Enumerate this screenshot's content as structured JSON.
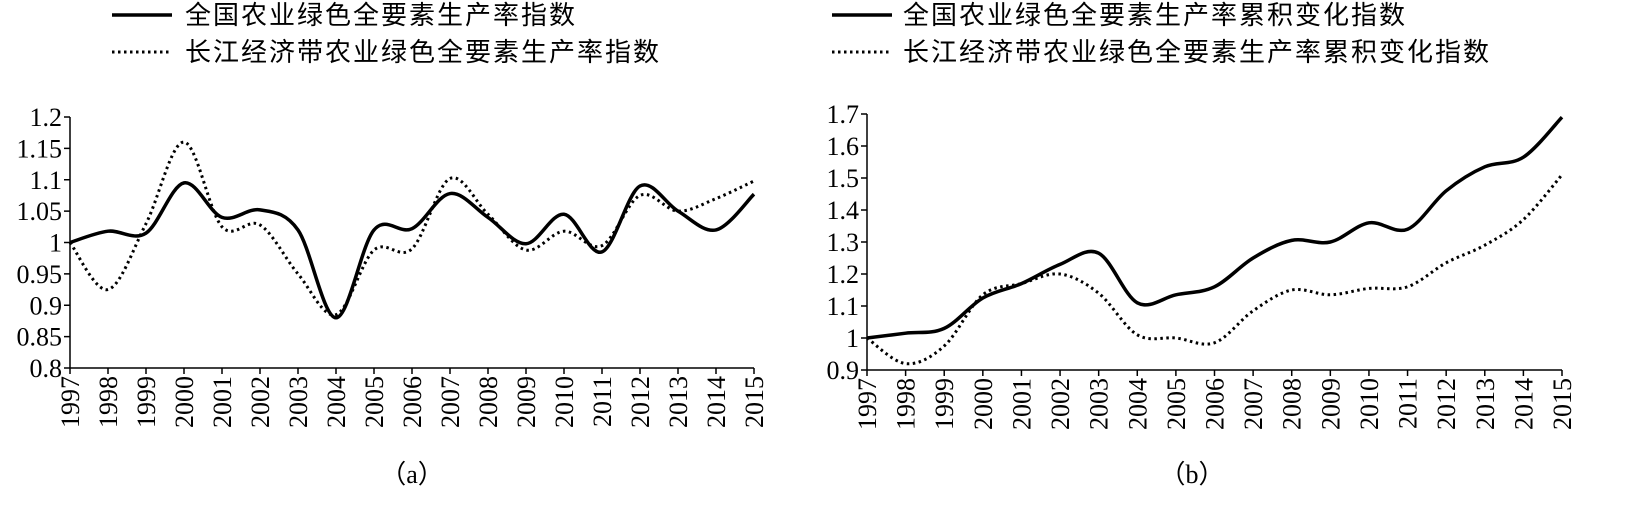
{
  "chart_data": [
    {
      "type": "line",
      "caption": "（a）",
      "x": [
        "1997",
        "1998",
        "1999",
        "2000",
        "2001",
        "2002",
        "2003",
        "2004",
        "2005",
        "2006",
        "2007",
        "2008",
        "2009",
        "2010",
        "2011",
        "2012",
        "2013",
        "2014",
        "2015"
      ],
      "ylim": [
        0.8,
        1.2
      ],
      "yticks": [
        "0.8",
        "0.85",
        "0.9",
        "0.95",
        "1",
        "1.05",
        "1.1",
        "1.15",
        "1.2"
      ],
      "legend_position": "top-left",
      "series": [
        {
          "name": "全国农业绿色全要素生产率指数",
          "style": "solid",
          "values": [
            1.0,
            1.018,
            1.015,
            1.095,
            1.04,
            1.052,
            1.02,
            0.88,
            1.02,
            1.022,
            1.078,
            1.04,
            0.998,
            1.045,
            0.985,
            1.09,
            1.05,
            1.02,
            1.077
          ]
        },
        {
          "name": "长江经济带农业绿色全要素生产率指数",
          "style": "dotted",
          "values": [
            1.0,
            0.925,
            1.03,
            1.16,
            1.025,
            1.028,
            0.95,
            0.885,
            0.988,
            0.99,
            1.102,
            1.045,
            0.988,
            1.018,
            0.995,
            1.075,
            1.05,
            1.07,
            1.098
          ]
        }
      ]
    },
    {
      "type": "line",
      "caption": "（b）",
      "x": [
        "1997",
        "1998",
        "1999",
        "2000",
        "2001",
        "2002",
        "2003",
        "2004",
        "2005",
        "2006",
        "2007",
        "2008",
        "2009",
        "2010",
        "2011",
        "2012",
        "2013",
        "2014",
        "2015"
      ],
      "ylim": [
        0.9,
        1.7
      ],
      "yticks": [
        "0.9",
        "1",
        "1.1",
        "1.2",
        "1.3",
        "1.4",
        "1.5",
        "1.6",
        "1.7"
      ],
      "legend_position": "top-left",
      "series": [
        {
          "name": "全国农业绿色全要素生产率累积变化指数",
          "style": "solid",
          "values": [
            1.0,
            1.015,
            1.03,
            1.125,
            1.17,
            1.23,
            1.265,
            1.11,
            1.135,
            1.16,
            1.25,
            1.305,
            1.3,
            1.36,
            1.34,
            1.46,
            1.535,
            1.565,
            1.69
          ]
        },
        {
          "name": "长江经济带农业绿色全要素生产率累积变化指数",
          "style": "dotted",
          "values": [
            1.0,
            0.92,
            0.975,
            1.135,
            1.17,
            1.2,
            1.14,
            1.01,
            1.0,
            0.985,
            1.085,
            1.15,
            1.135,
            1.155,
            1.16,
            1.235,
            1.29,
            1.37,
            1.51
          ]
        }
      ]
    }
  ]
}
